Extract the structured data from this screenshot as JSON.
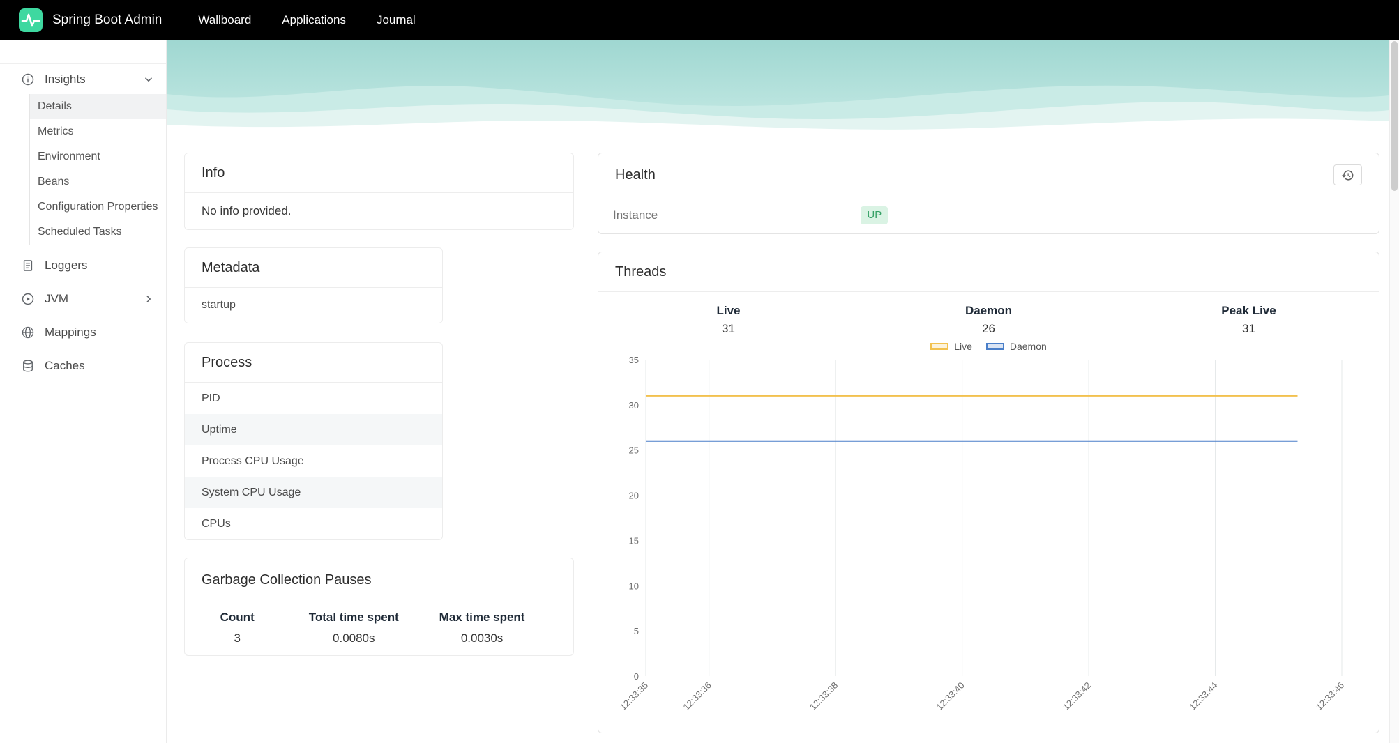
{
  "navbar": {
    "brand": "Spring Boot Admin",
    "items": [
      {
        "label": "Wallboard"
      },
      {
        "label": "Applications"
      },
      {
        "label": "Journal"
      }
    ]
  },
  "sidebar": {
    "insights": {
      "label": "Insights",
      "icon": "info-circle-icon",
      "children": [
        {
          "label": "Details",
          "active": true
        },
        {
          "label": "Metrics"
        },
        {
          "label": "Environment"
        },
        {
          "label": "Beans"
        },
        {
          "label": "Configuration Properties"
        },
        {
          "label": "Scheduled Tasks"
        }
      ]
    },
    "items": [
      {
        "label": "Loggers",
        "icon": "document-icon"
      },
      {
        "label": "JVM",
        "icon": "play-circle-icon",
        "chevron": "right"
      },
      {
        "label": "Mappings",
        "icon": "globe-icon"
      },
      {
        "label": "Caches",
        "icon": "database-icon"
      }
    ]
  },
  "info_panel": {
    "title": "Info",
    "body": "No info provided."
  },
  "health_panel": {
    "title": "Health",
    "instance_label": "Instance",
    "status": "UP",
    "status_color": "#35a065",
    "status_bg": "#daf3e4"
  },
  "metadata_panel": {
    "title": "Metadata",
    "rows": [
      {
        "key": "startup",
        "value": ""
      }
    ]
  },
  "process_panel": {
    "title": "Process",
    "rows": [
      {
        "label": "PID"
      },
      {
        "label": "Uptime"
      },
      {
        "label": "Process CPU Usage"
      },
      {
        "label": "System CPU Usage"
      },
      {
        "label": "CPUs"
      }
    ]
  },
  "gc_panel": {
    "title": "Garbage Collection Pauses",
    "columns": [
      "Count",
      "Total time spent",
      "Max time spent"
    ],
    "values": [
      "3",
      "0.0080s",
      "0.0030s"
    ]
  },
  "threads_panel": {
    "title": "Threads",
    "stats": [
      {
        "label": "Live",
        "value": "31"
      },
      {
        "label": "Daemon",
        "value": "26"
      },
      {
        "label": "Peak Live",
        "value": "31"
      }
    ]
  },
  "chart_data": {
    "type": "line",
    "title": "Threads",
    "xlabel": "",
    "ylabel": "",
    "x_tick_labels": [
      "12:33:35",
      "12:33:36",
      "12:33:38",
      "12:33:40",
      "12:33:42",
      "12:33:44",
      "12:33:46"
    ],
    "x_tick_positions_s": [
      0,
      1,
      3,
      5,
      7,
      9,
      11
    ],
    "x_range_s": [
      0,
      11
    ],
    "ylim": [
      0,
      35
    ],
    "y_ticks": [
      0,
      5,
      10,
      15,
      20,
      25,
      30,
      35
    ],
    "grid": "vertical-only",
    "legend_position": "top",
    "series": [
      {
        "name": "Live",
        "color": "#f2c14e",
        "points": [
          [
            0,
            31
          ],
          [
            10.3,
            31
          ]
        ]
      },
      {
        "name": "Daemon",
        "color": "#4a7fc9",
        "points": [
          [
            0,
            26
          ],
          [
            10.3,
            26
          ]
        ]
      }
    ]
  }
}
